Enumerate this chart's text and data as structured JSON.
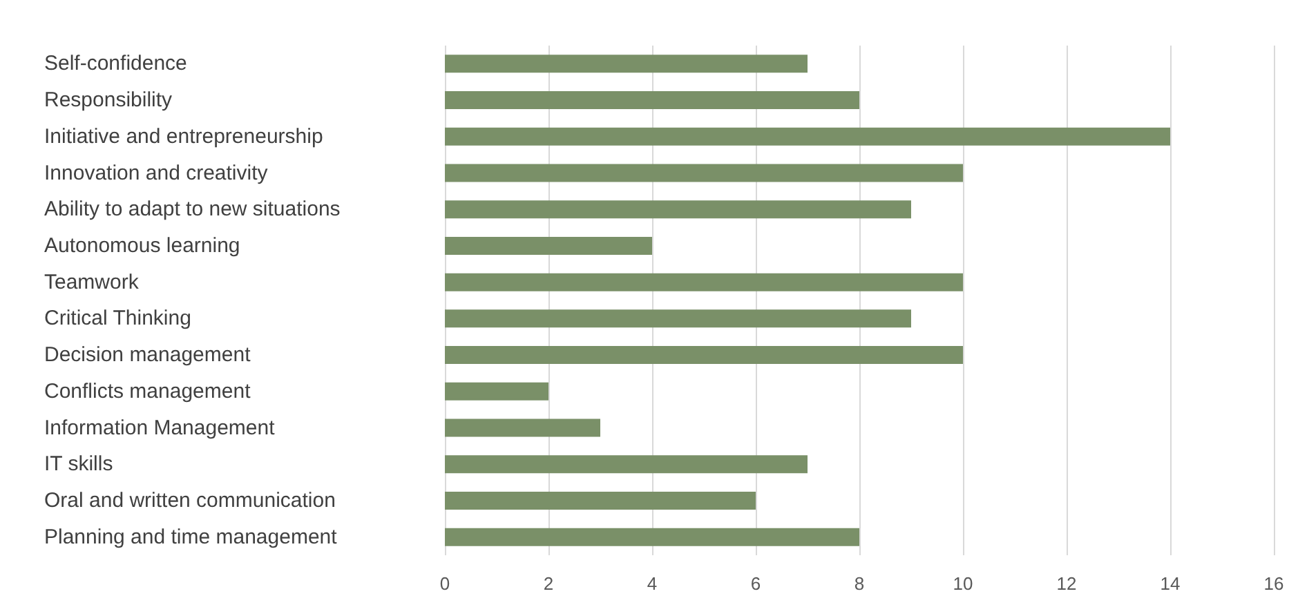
{
  "chart_data": {
    "type": "bar",
    "orientation": "horizontal",
    "categories": [
      "Self-confidence",
      "Responsibility",
      "Initiative and entrepreneurship",
      "Innovation and creativity",
      "Ability to adapt to new situations",
      "Autonomous learning",
      "Teamwork",
      "Critical Thinking",
      "Decision management",
      "Conflicts management",
      "Information Management",
      "IT skills",
      "Oral and written communication",
      "Planning and time management"
    ],
    "values": [
      7,
      8,
      14,
      10,
      9,
      4,
      10,
      9,
      10,
      2,
      3,
      7,
      6,
      8
    ],
    "color": "#7a9068",
    "xlim": [
      0,
      16
    ],
    "xticks": [
      0,
      2,
      4,
      6,
      8,
      10,
      12,
      14,
      16
    ],
    "grid": "x"
  }
}
